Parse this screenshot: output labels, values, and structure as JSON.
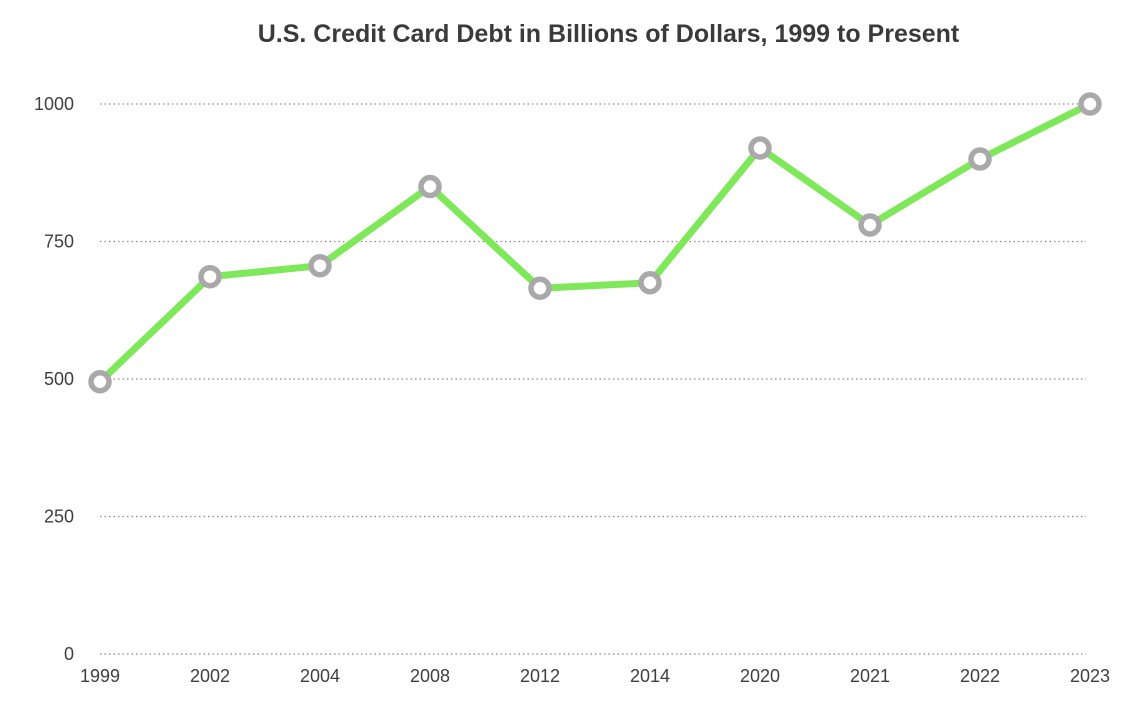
{
  "chart_data": {
    "type": "line",
    "title": "U.S. Credit Card Debt in Billions of Dollars, 1999 to Present",
    "categories": [
      "1999",
      "2002",
      "2004",
      "2008",
      "2012",
      "2014",
      "2020",
      "2021",
      "2022",
      "2023"
    ],
    "series": [
      {
        "values": [
          495,
          686,
          706,
          850,
          665,
          675,
          920,
          780,
          900,
          1000
        ]
      }
    ],
    "ylim": [
      0,
      1000
    ],
    "yticks": [
      0,
      250,
      500,
      750,
      1000
    ],
    "grid": true,
    "legend": "none",
    "colors": {
      "line": "#7fe85a",
      "marker": "#a9a9a9",
      "grid": "#8a8a8a",
      "text": "#3a3a3a"
    }
  }
}
